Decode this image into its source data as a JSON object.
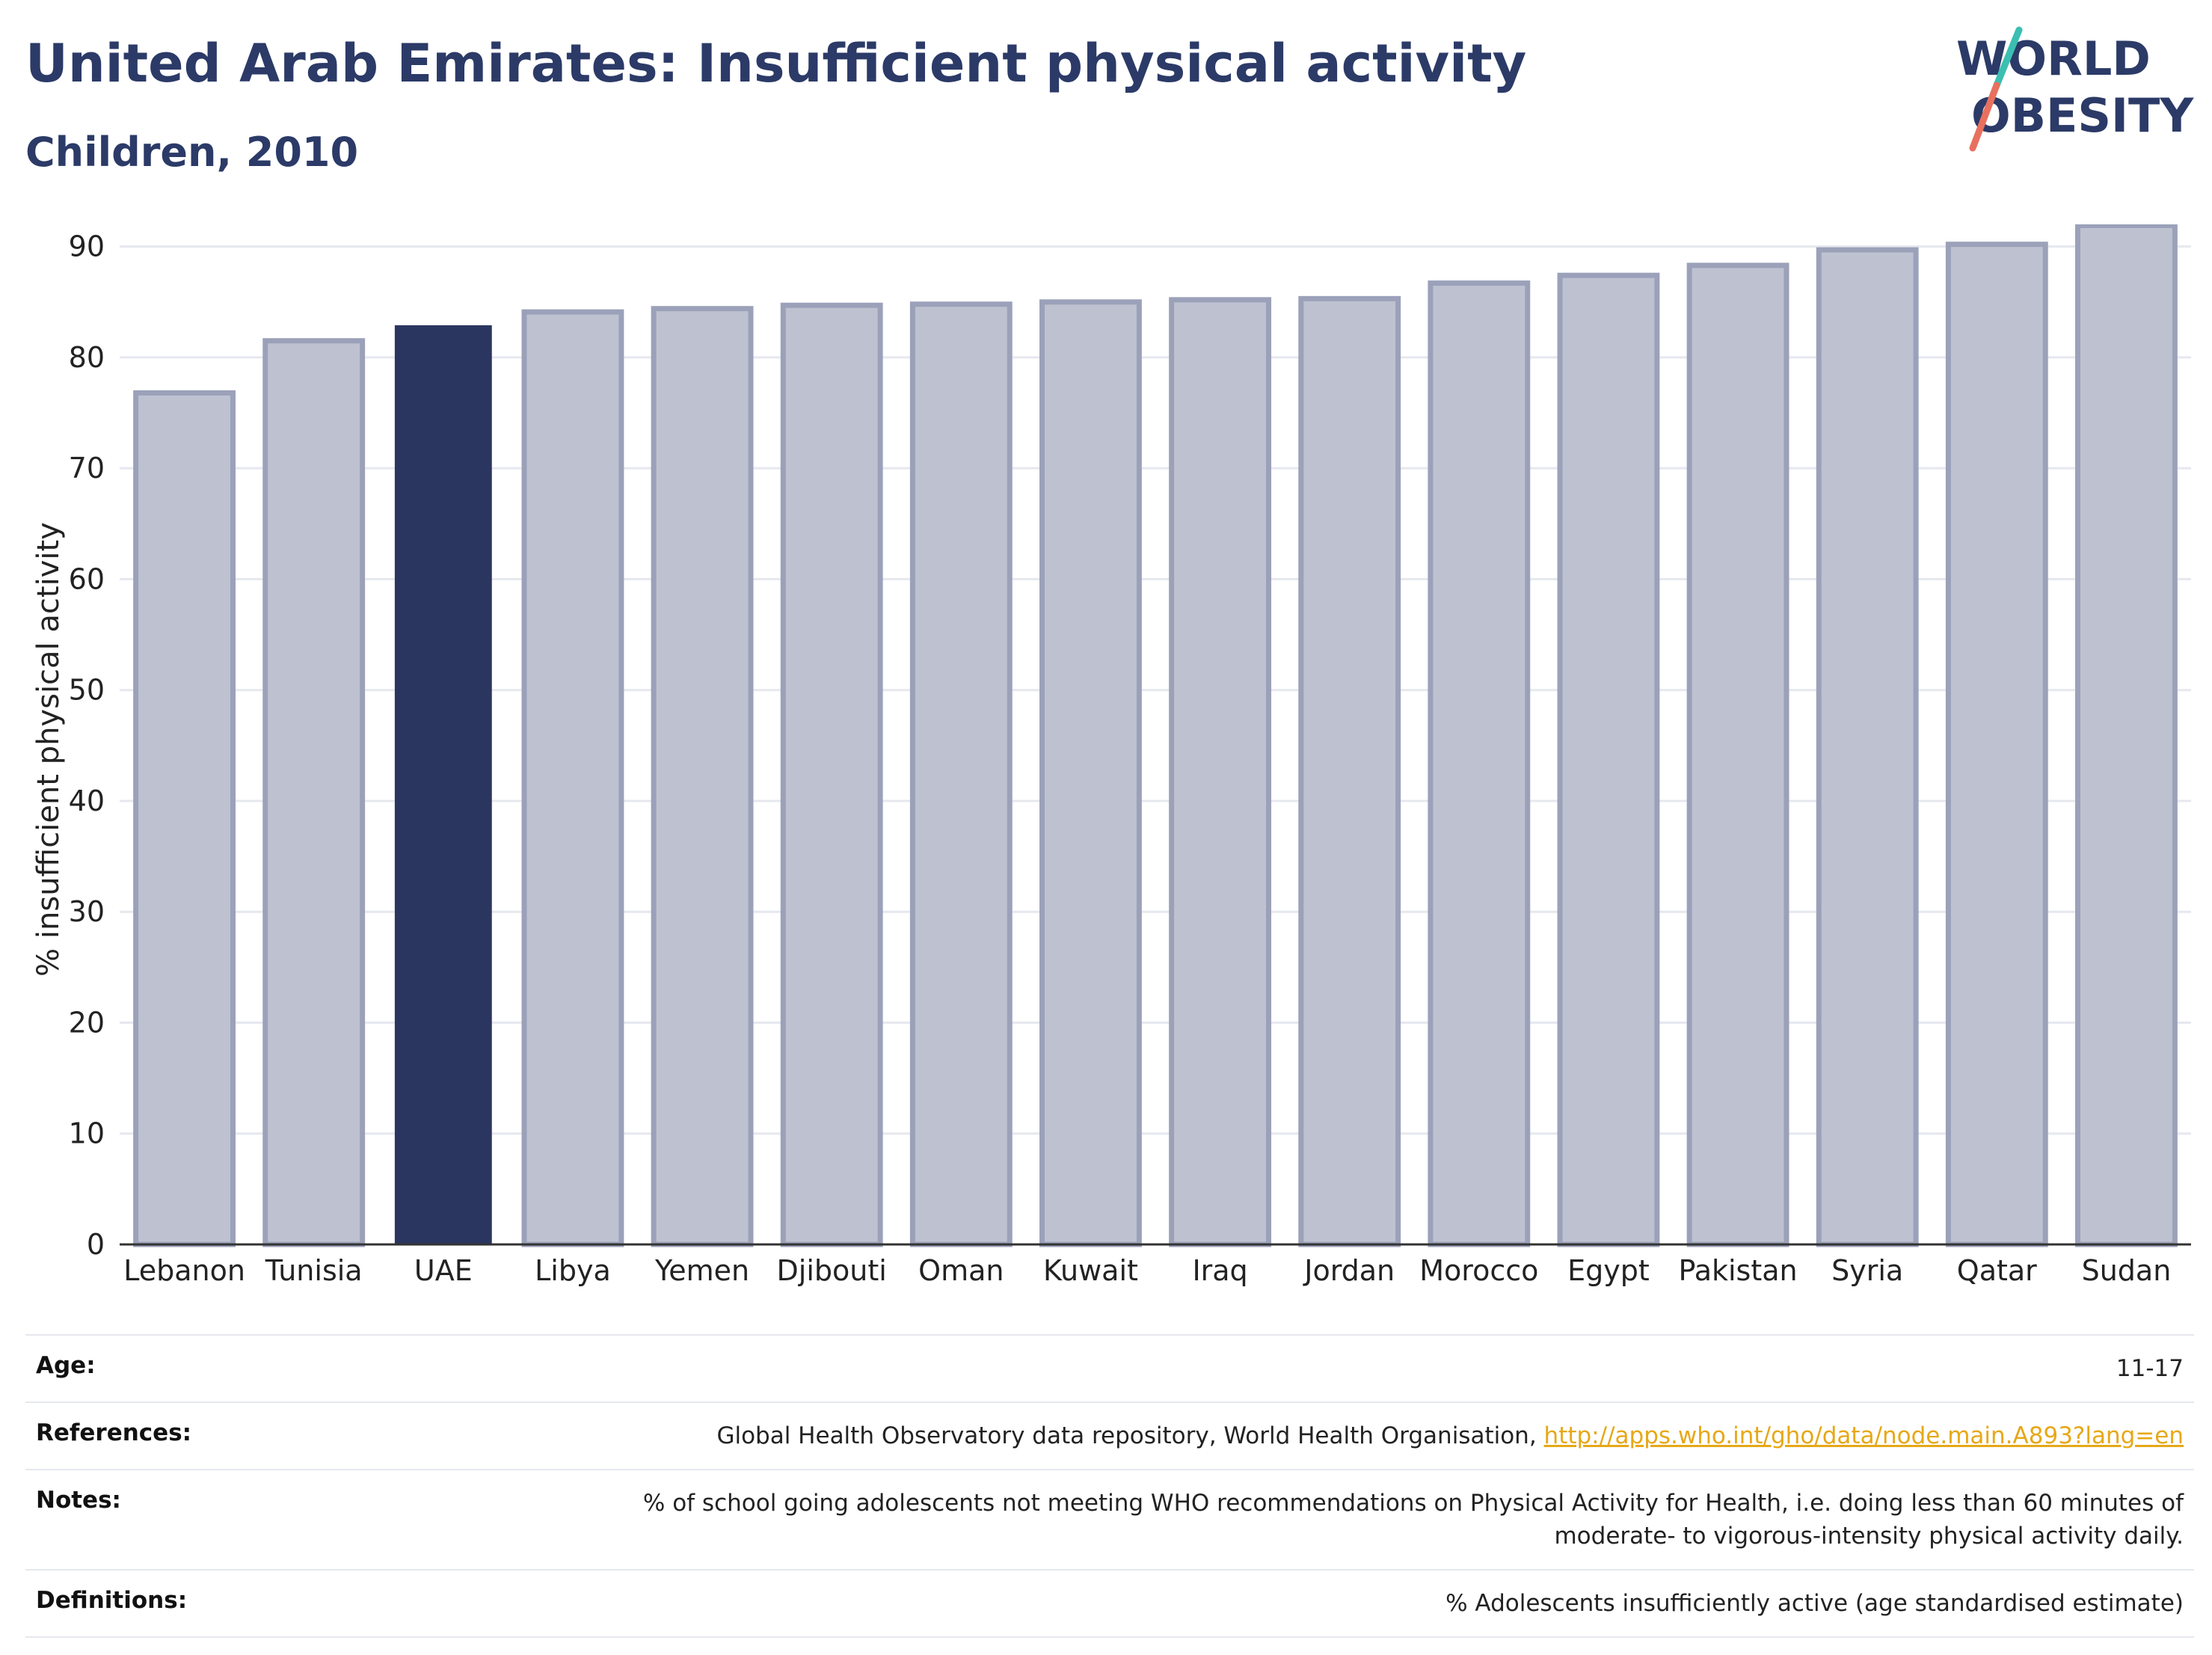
{
  "title": "United Arab Emirates: Insufficient physical activity",
  "subtitle": "Children, 2010",
  "logo": {
    "line1": "WORLD",
    "line2": "OBESITY"
  },
  "colors": {
    "highlight": "#2b3660",
    "bar": "#bec2d0",
    "bar_edge": "#9ba1b9",
    "grid": "#e6e8ef",
    "title": "#2b3a67",
    "link": "#e6a817"
  },
  "chart_data": {
    "type": "bar",
    "ylabel": "% insufficient physical activity",
    "ylim": [
      0,
      92
    ],
    "yticks": [
      0,
      10,
      20,
      30,
      40,
      50,
      60,
      70,
      80,
      90
    ],
    "categories": [
      "Lebanon",
      "Tunisia",
      "UAE",
      "Libya",
      "Yemen",
      "Djibouti",
      "Oman",
      "Kuwait",
      "Iraq",
      "Jordan",
      "Morocco",
      "Egypt",
      "Pakistan",
      "Syria",
      "Qatar",
      "Sudan"
    ],
    "values": [
      76.8,
      81.5,
      82.9,
      84.1,
      84.4,
      84.7,
      84.8,
      85.0,
      85.2,
      85.3,
      86.7,
      87.4,
      88.3,
      89.7,
      90.2,
      91.9
    ],
    "highlight": "UAE",
    "grid": true
  },
  "info": {
    "age_label": "Age:",
    "age_value": "11-17",
    "references_label": "References:",
    "references_text": "Global Health Observatory data repository, World Health Organisation,",
    "references_link": "http://apps.who.int/gho/data/node.main.A893?lang=en",
    "notes_label": "Notes:",
    "notes_line1": "% of school going adolescents not meeting WHO recommendations on Physical Activity for Health, i.e. doing less than 60 minutes of",
    "notes_line2": "moderate- to vigorous-intensity physical activity daily.",
    "definitions_label": "Definitions:",
    "definitions_text": "% Adolescents insufficiently active (age standardised estimate)"
  }
}
